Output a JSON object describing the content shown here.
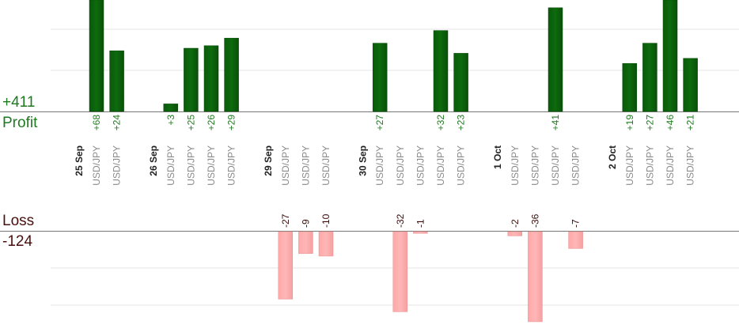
{
  "summary": {
    "profit_total": "+411",
    "profit_label": "Profit",
    "loss_label": "Loss",
    "loss_total": "-124"
  },
  "colors": {
    "profit_bar": "#0d6b0d",
    "profit_text": "#1f7a1f",
    "loss_bar": "#ffb6b6",
    "loss_text": "#3a0a0a",
    "date_text": "#222222",
    "symbol_text": "#8a8a8a",
    "grid": "#e6e6e6",
    "axis": "#777777"
  },
  "chart_data": {
    "type": "bar",
    "columns": [
      {
        "kind": "date",
        "label": "25 Sep"
      },
      {
        "kind": "trade",
        "label": "USD/JPY",
        "value": 68,
        "value_label": "+68"
      },
      {
        "kind": "trade",
        "label": "USD/JPY",
        "value": 24,
        "value_label": "+24"
      },
      {
        "kind": "gap"
      },
      {
        "kind": "date",
        "label": "26 Sep"
      },
      {
        "kind": "trade",
        "label": "USD/JPY",
        "value": 3,
        "value_label": "+3"
      },
      {
        "kind": "trade",
        "label": "USD/JPY",
        "value": 25,
        "value_label": "+25"
      },
      {
        "kind": "trade",
        "label": "USD/JPY",
        "value": 26,
        "value_label": "+26"
      },
      {
        "kind": "trade",
        "label": "USD/JPY",
        "value": 29,
        "value_label": "+29"
      },
      {
        "kind": "gap"
      },
      {
        "kind": "date",
        "label": "29 Sep"
      },
      {
        "kind": "trade",
        "label": "USD/JPY",
        "value": -27,
        "value_label": "-27"
      },
      {
        "kind": "trade",
        "label": "USD/JPY",
        "value": -9,
        "value_label": "-9"
      },
      {
        "kind": "trade",
        "label": "USD/JPY",
        "value": -10,
        "value_label": "-10"
      },
      {
        "kind": "gap"
      },
      {
        "kind": "date",
        "label": "30 Sep"
      },
      {
        "kind": "trade",
        "label": "USD/JPY",
        "value": 27,
        "value_label": "+27"
      },
      {
        "kind": "trade",
        "label": "USD/JPY",
        "value": -32,
        "value_label": "-32"
      },
      {
        "kind": "trade",
        "label": "USD/JPY",
        "value": -1,
        "value_label": "-1"
      },
      {
        "kind": "trade",
        "label": "USD/JPY",
        "value": 32,
        "value_label": "+32"
      },
      {
        "kind": "trade",
        "label": "USD/JPY",
        "value": 23,
        "value_label": "+23"
      },
      {
        "kind": "gap"
      },
      {
        "kind": "date",
        "label": "1 Oct"
      },
      {
        "kind": "trade",
        "label": "USD/JPY",
        "value": -2,
        "value_label": "-2"
      },
      {
        "kind": "trade",
        "label": "USD/JPY",
        "value": -36,
        "value_label": "-36"
      },
      {
        "kind": "trade",
        "label": "USD/JPY",
        "value": 41,
        "value_label": "+41"
      },
      {
        "kind": "trade",
        "label": "USD/JPY",
        "value": -7,
        "value_label": "-7"
      },
      {
        "kind": "gap"
      },
      {
        "kind": "date",
        "label": "2 Oct"
      },
      {
        "kind": "trade",
        "label": "USD/JPY",
        "value": 19,
        "value_label": "+19"
      },
      {
        "kind": "trade",
        "label": "USD/JPY",
        "value": 27,
        "value_label": "+27"
      },
      {
        "kind": "trade",
        "label": "USD/JPY",
        "value": 46,
        "value_label": "+46"
      },
      {
        "kind": "trade",
        "label": "USD/JPY",
        "value": 21,
        "value_label": "+21"
      }
    ]
  }
}
